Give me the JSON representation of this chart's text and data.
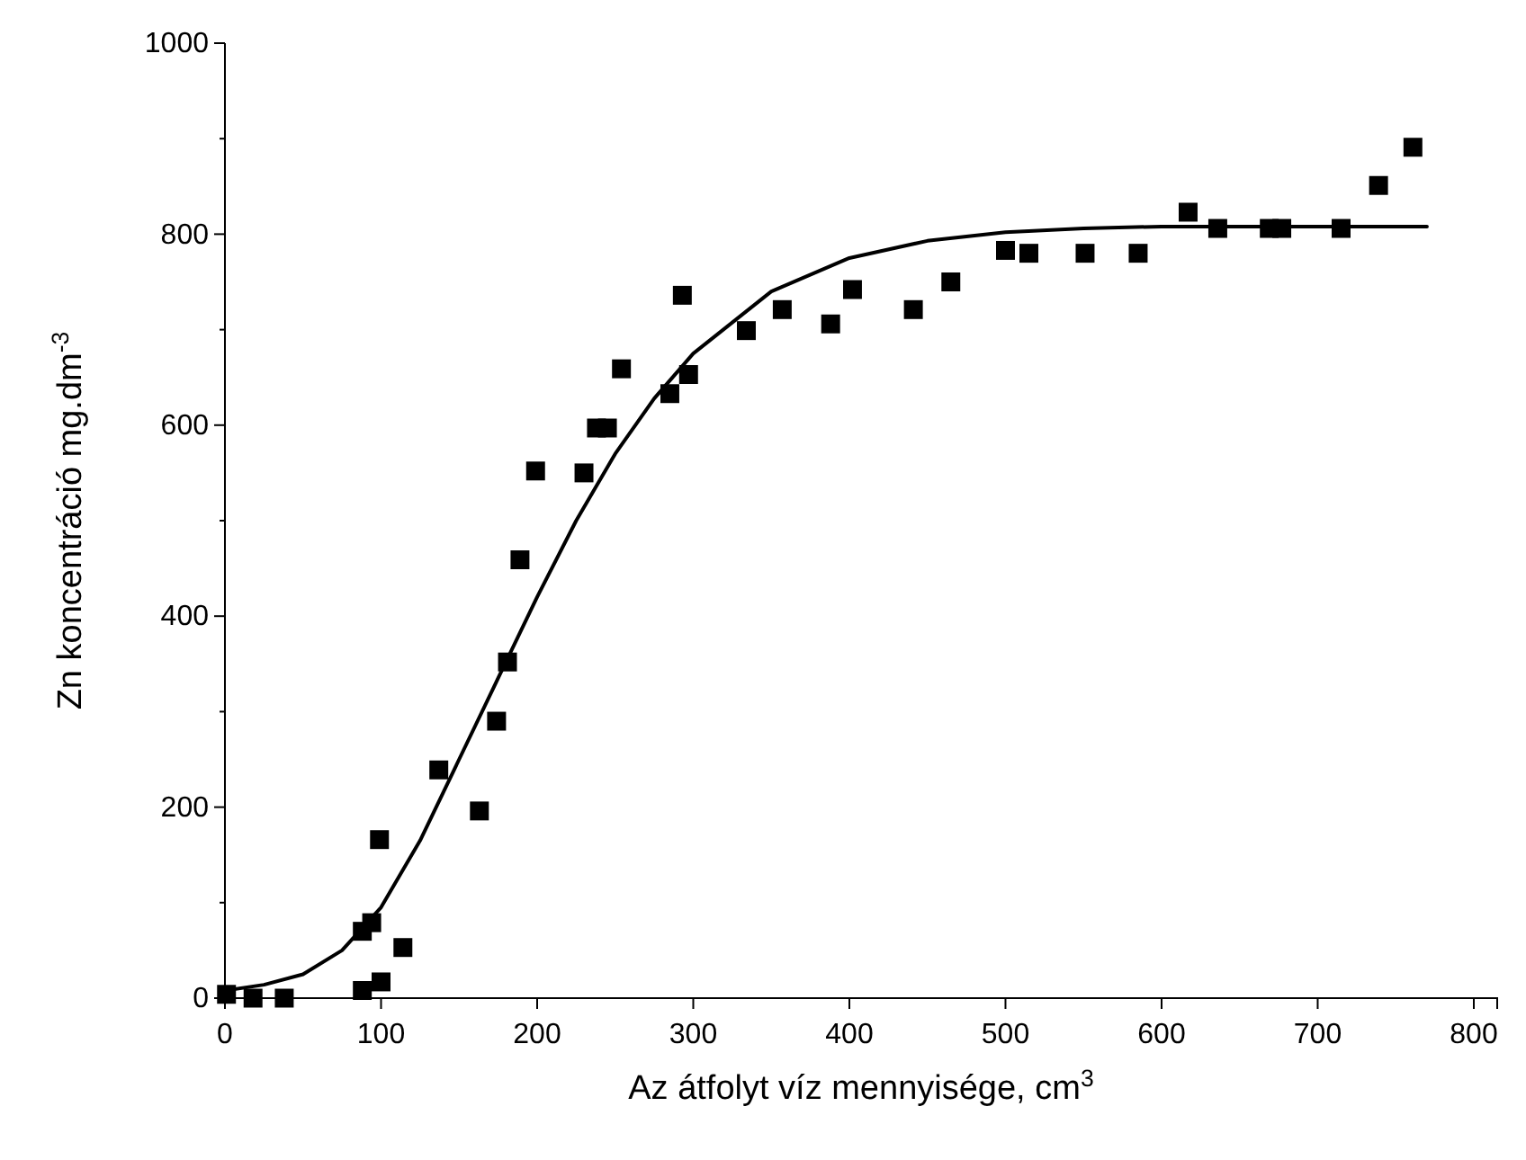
{
  "chart_data": {
    "type": "scatter",
    "xlabel": "Az átfolyt víz mennyisége, cm$^{3}$",
    "ylabel": "Zn koncentráció mg.dm$^{-3}$",
    "xlim": [
      0,
      815
    ],
    "xticks": [
      0,
      100,
      200,
      300,
      400,
      500,
      600,
      700,
      800
    ],
    "ylim": [
      0,
      1000
    ],
    "yticks": [
      0,
      {
        "value": 100,
        "label": null
      },
      200,
      {
        "value": 300,
        "label": null
      },
      400,
      {
        "value": 500,
        "label": null
      },
      600,
      {
        "value": 700,
        "label": null
      },
      800,
      {
        "value": 900,
        "label": null
      },
      1000
    ],
    "grid": false,
    "series": [
      {
        "marker": "square",
        "color": "#000000",
        "x": [
          1,
          18,
          38,
          88,
          88,
          94,
          99,
          100,
          114,
          137,
          163,
          174,
          181,
          189,
          199,
          230,
          238,
          245,
          254,
          285,
          293,
          297,
          334,
          357,
          388,
          402,
          441,
          465,
          500,
          515,
          551,
          585,
          617,
          636,
          669,
          677,
          715,
          739,
          761
        ],
        "values": [
          4,
          0,
          0,
          8,
          70,
          79,
          166,
          17,
          53,
          239,
          196,
          290,
          352,
          459,
          552,
          550,
          597,
          597,
          659,
          633,
          736,
          653,
          699,
          721,
          706,
          742,
          721,
          750,
          783,
          780,
          780,
          780,
          823,
          806,
          806,
          806,
          806,
          851,
          891
        ]
      },
      {
        "type": "line",
        "marker": "none",
        "line_style": "solid",
        "color": "#000000",
        "x": [
          0,
          25,
          50,
          75,
          100,
          125,
          150,
          175,
          200,
          225,
          250,
          275,
          300,
          350,
          400,
          450,
          500,
          550,
          600,
          700,
          770
        ],
        "values": [
          8,
          14,
          25,
          50,
          95,
          165,
          250,
          335,
          420,
          500,
          570,
          628,
          675,
          740,
          775,
          793,
          802,
          806,
          808,
          808,
          808
        ]
      }
    ]
  }
}
